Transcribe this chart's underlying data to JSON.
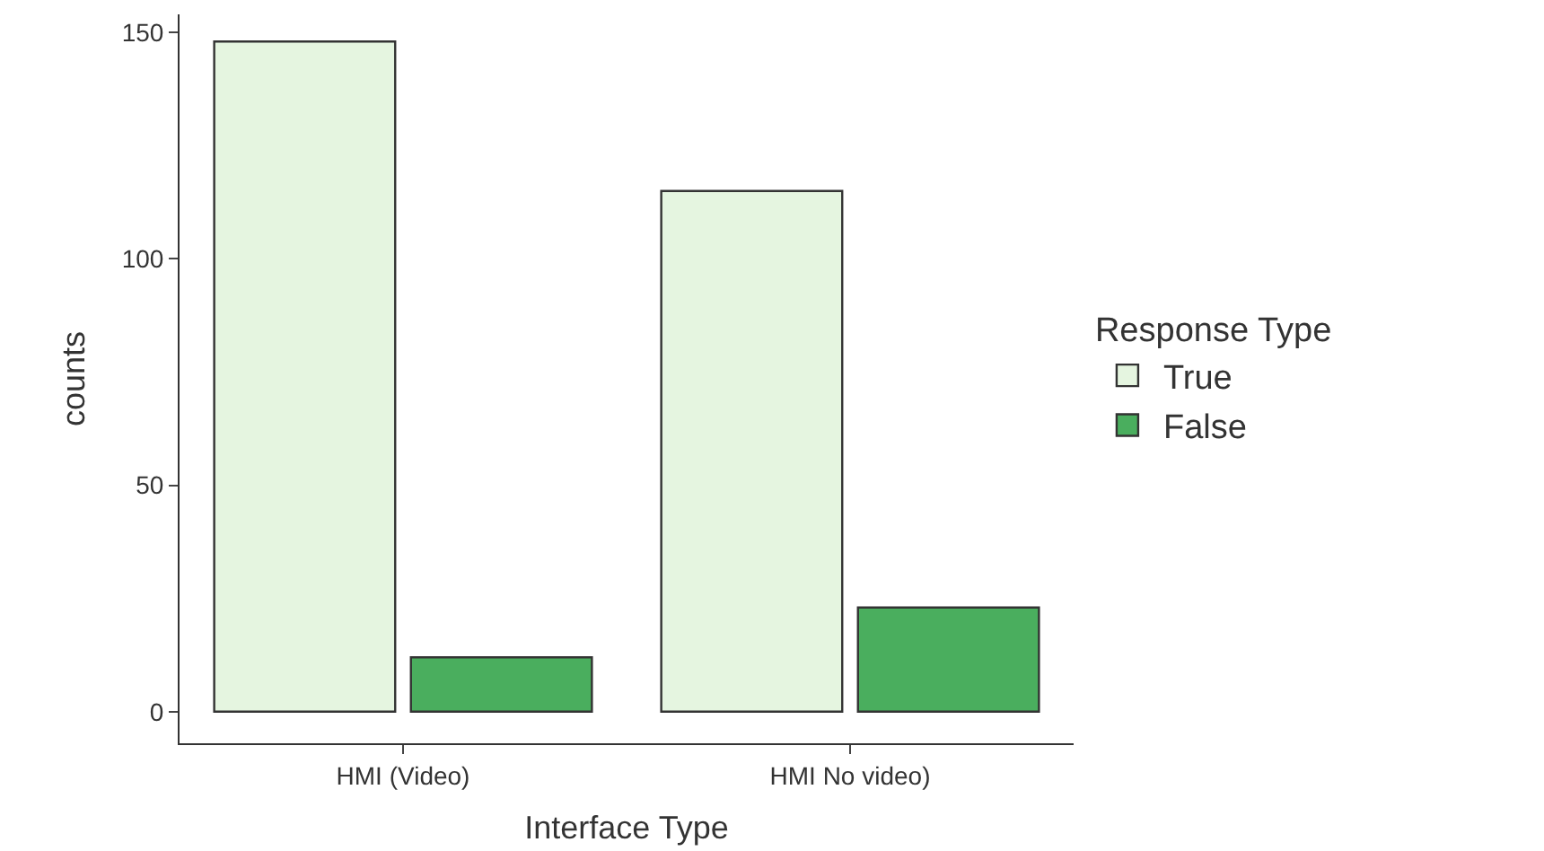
{
  "chart_data": {
    "type": "bar",
    "xlabel": "Interface Type",
    "ylabel": "counts",
    "legend_title": "Response Type",
    "categories": [
      "HMI (Video)",
      "HMI No video)"
    ],
    "series": [
      {
        "name": "True",
        "color": "#e5f5e0",
        "values": [
          148,
          115
        ]
      },
      {
        "name": "False",
        "color": "#4aae5e",
        "values": [
          12,
          23
        ]
      }
    ],
    "ylim": [
      -7,
      154
    ],
    "yticks": [
      0,
      50,
      100,
      150
    ],
    "legend": "right"
  }
}
